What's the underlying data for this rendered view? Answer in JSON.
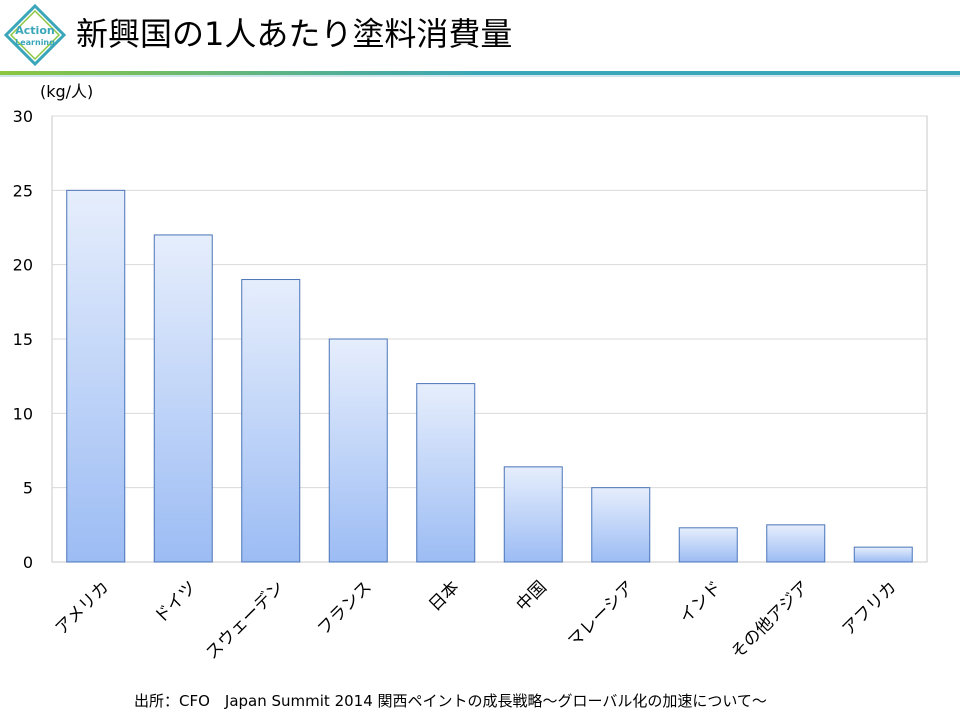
{
  "slide": {
    "title": "新興国の1人あたり塗料消費量",
    "logo_text_1": "Action",
    "logo_text_2": "Learning",
    "source": "出所：CFO　Japan Summit 2014 関西ペイントの成長戦略～グローバル化の加速について～"
  },
  "colors": {
    "accent_teal": "#3aa6b9",
    "accent_green": "#8cc63f",
    "bar_top": "#e6eefc",
    "bar_bottom": "#9cbcf4",
    "bar_stroke": "#4a74b8"
  },
  "chart_data": {
    "type": "bar",
    "categories": [
      "アメリカ",
      "ドイツ",
      "スウェーデン",
      "フランス",
      "日本",
      "中国",
      "マレーシア",
      "インド",
      "その他アジア",
      "アフリカ"
    ],
    "values": [
      25,
      22,
      19,
      15,
      12,
      6.4,
      5,
      2.3,
      2.5,
      1
    ],
    "ylabel": "(kg/人)",
    "ylim": [
      0,
      30
    ],
    "yticks": [
      0,
      5,
      10,
      15,
      20,
      25,
      30
    ],
    "grid": true,
    "legend": "none"
  }
}
